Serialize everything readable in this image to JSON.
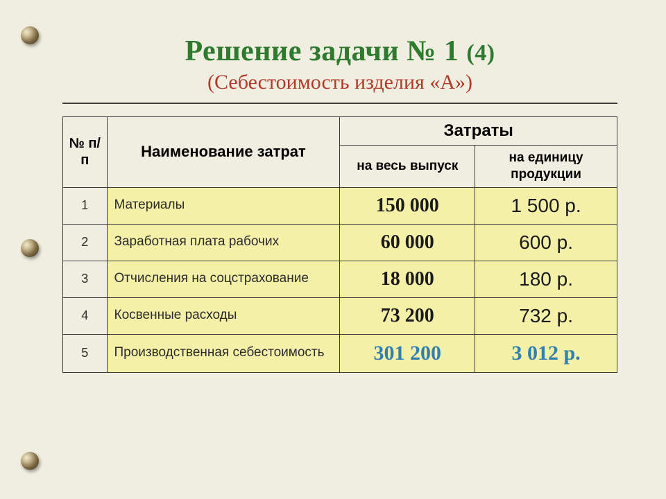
{
  "title": {
    "main": "Решение задачи № 1",
    "part": "(4)",
    "subtitle": "(Себестоимость изделия «А»)"
  },
  "table": {
    "header": {
      "idx": "№ п/п",
      "name": "Наименование затрат",
      "costs": "Затраты",
      "sub_total": "на весь выпуск",
      "sub_unit": "на единицу продукции"
    },
    "rows": [
      {
        "idx": "1",
        "name": "Материалы",
        "total": "150 000",
        "unit": "1 500 р.",
        "final": false
      },
      {
        "idx": "2",
        "name": "Заработная плата рабочих",
        "total": "60 000",
        "unit": "600 р.",
        "final": false
      },
      {
        "idx": "3",
        "name": "Отчисления на соцстрахование",
        "total": "18 000",
        "unit": "180 р.",
        "final": false
      },
      {
        "idx": "4",
        "name": "Косвенные расходы",
        "total": "73 200",
        "unit": "732 р.",
        "final": false
      },
      {
        "idx": "5",
        "name": "Производственная себестоимость",
        "total": "301 200",
        "unit": "3 012 р.",
        "final": true
      }
    ]
  },
  "colors": {
    "background": "#f0eee0",
    "title_green": "#2e7a2e",
    "subtitle_red": "#b23a2a",
    "row_yellow": "#f4f0a8",
    "final_blue": "#2f7fb2",
    "border": "#3a3a3a"
  }
}
